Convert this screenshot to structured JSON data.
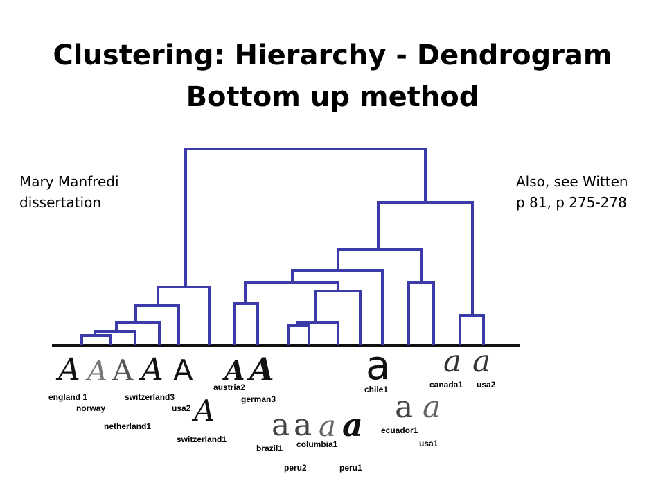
{
  "slide": {
    "title_line1": "Clustering: Hierarchy - Dendrogram",
    "title_line2": "Bottom up method",
    "note_left": [
      "Mary Manfredi",
      "dissertation"
    ],
    "note_right": [
      "Also, see Witten",
      "p 81, p 275-278"
    ]
  },
  "dendrogram": {
    "line_color": "#3a3aa8",
    "leaves": [
      "england 1",
      "norway",
      "netherland1",
      "switzerland3",
      "usa2",
      "switzerland1",
      "austria2",
      "german3",
      "brazil1",
      "columbia1",
      "peru2",
      "peru1",
      "chile1",
      "ecuador1",
      "usa1",
      "canada1",
      "usa2"
    ]
  }
}
